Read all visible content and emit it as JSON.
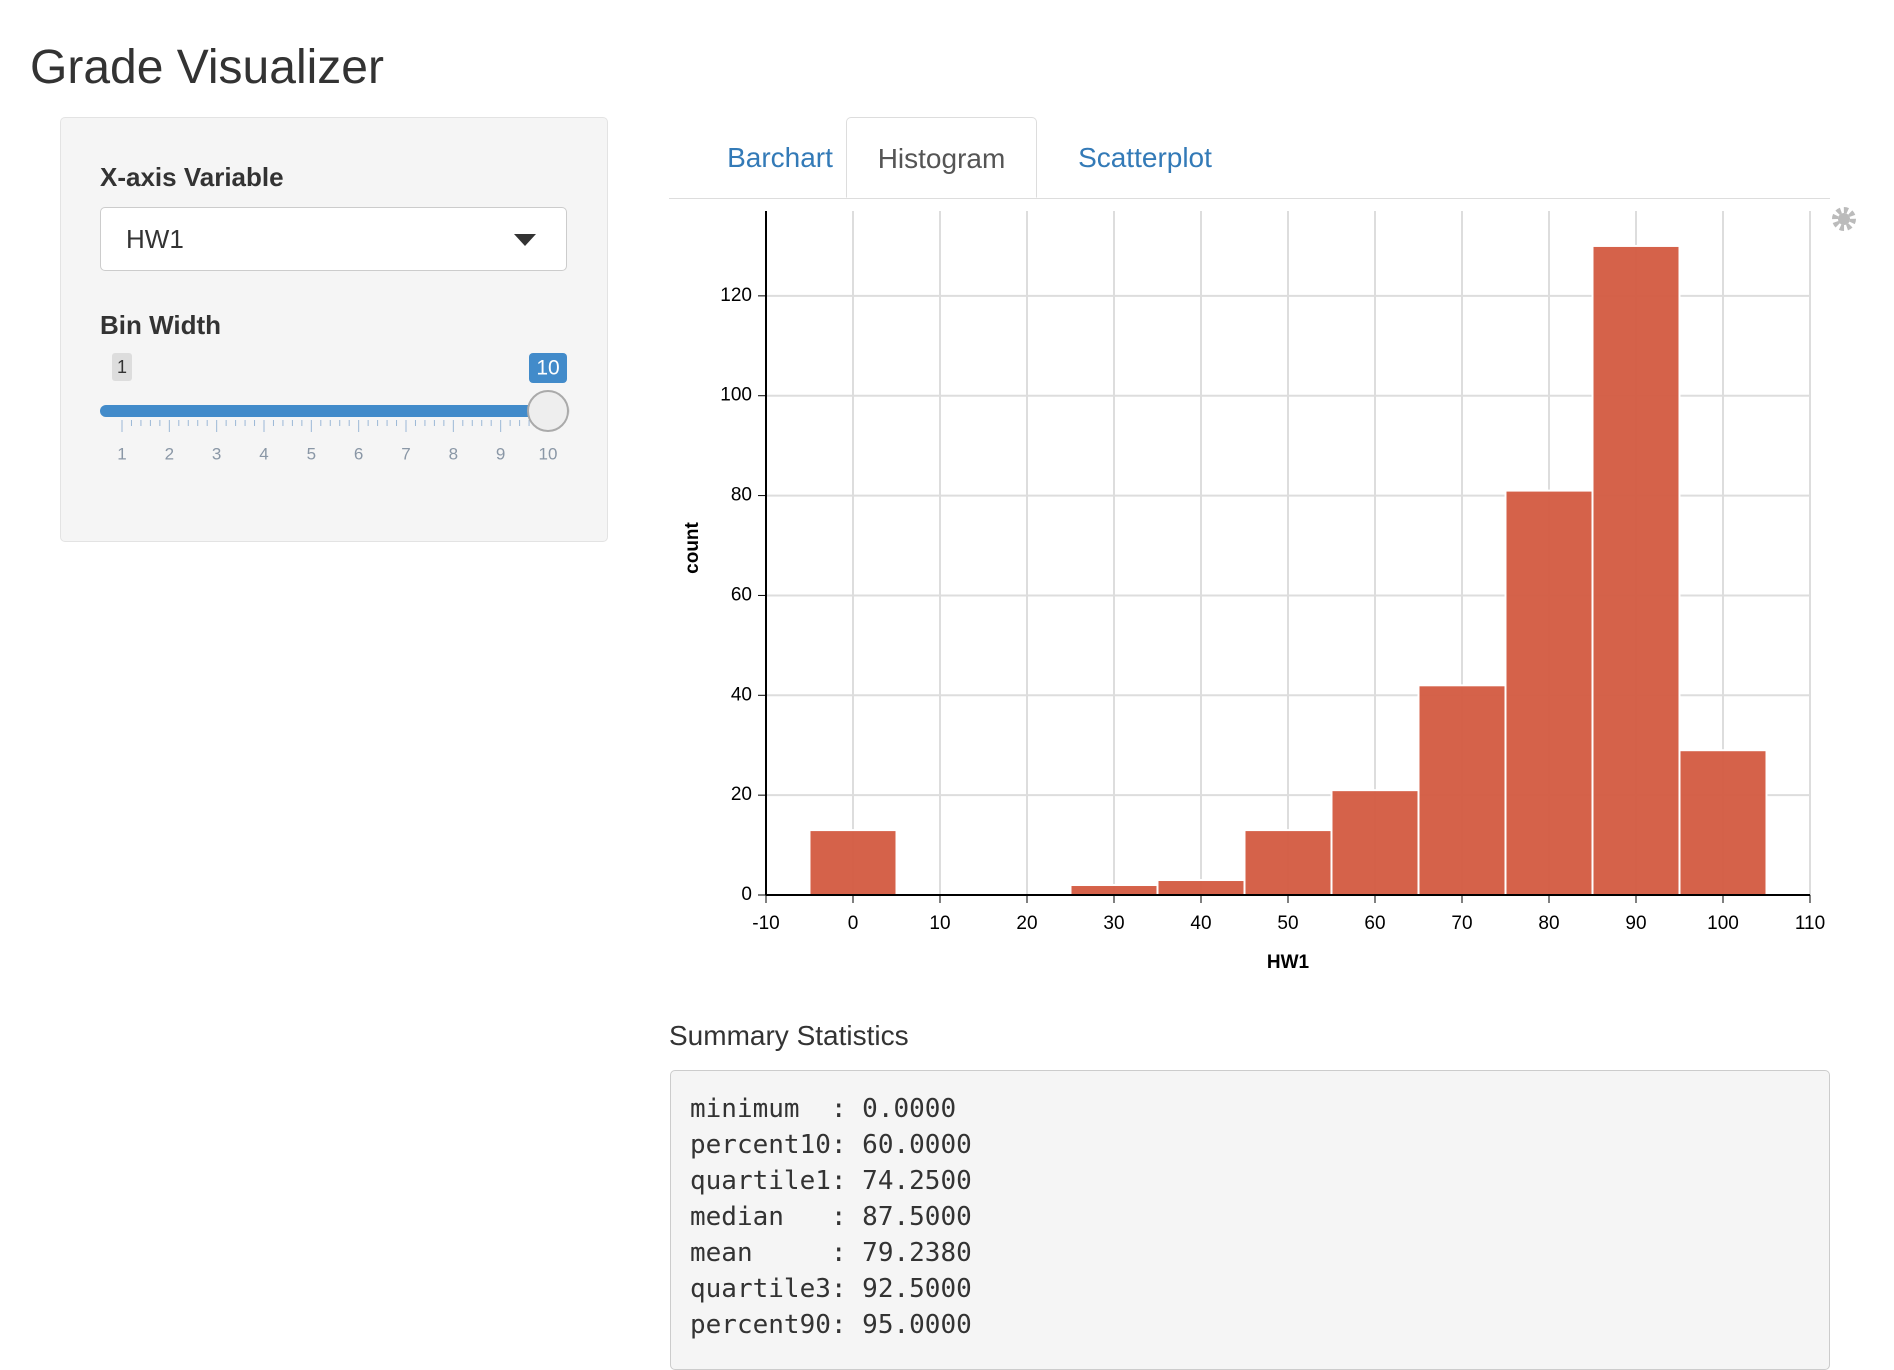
{
  "title": "Grade Visualizer",
  "sidebar": {
    "x_label": "X-axis Variable",
    "x_value": "HW1",
    "bin_label": "Bin Width",
    "slider": {
      "min": 1,
      "max": 10,
      "value": 10,
      "ticks": [
        1,
        2,
        3,
        4,
        5,
        6,
        7,
        8,
        9,
        10
      ]
    }
  },
  "tabs": [
    "Barchart",
    "Histogram",
    "Scatterplot"
  ],
  "active_tab": 1,
  "chart_data": {
    "type": "histogram",
    "x_label": "HW1",
    "y_label": "count",
    "bins": [
      -5,
      5,
      15,
      25,
      35,
      45,
      55,
      65,
      75,
      85,
      95,
      105
    ],
    "values": [
      13,
      0,
      0,
      2,
      3,
      13,
      21,
      42,
      81,
      130,
      29
    ],
    "color": "#d35a40",
    "grid": true,
    "xlim": [
      -10,
      110
    ],
    "xticks": [
      -10,
      0,
      10,
      20,
      30,
      40,
      50,
      60,
      70,
      80,
      90,
      100,
      110
    ],
    "ylim": [
      0,
      137
    ],
    "yticks": [
      0,
      20,
      40,
      60,
      80,
      100,
      120
    ]
  },
  "summary": {
    "title": "Summary Statistics",
    "lines": [
      "minimum  : 0.0000",
      "percent10: 60.0000",
      "quartile1: 74.2500",
      "median   : 87.5000",
      "mean     : 79.2380",
      "quartile3: 92.5000",
      "percent90: 95.0000"
    ]
  }
}
